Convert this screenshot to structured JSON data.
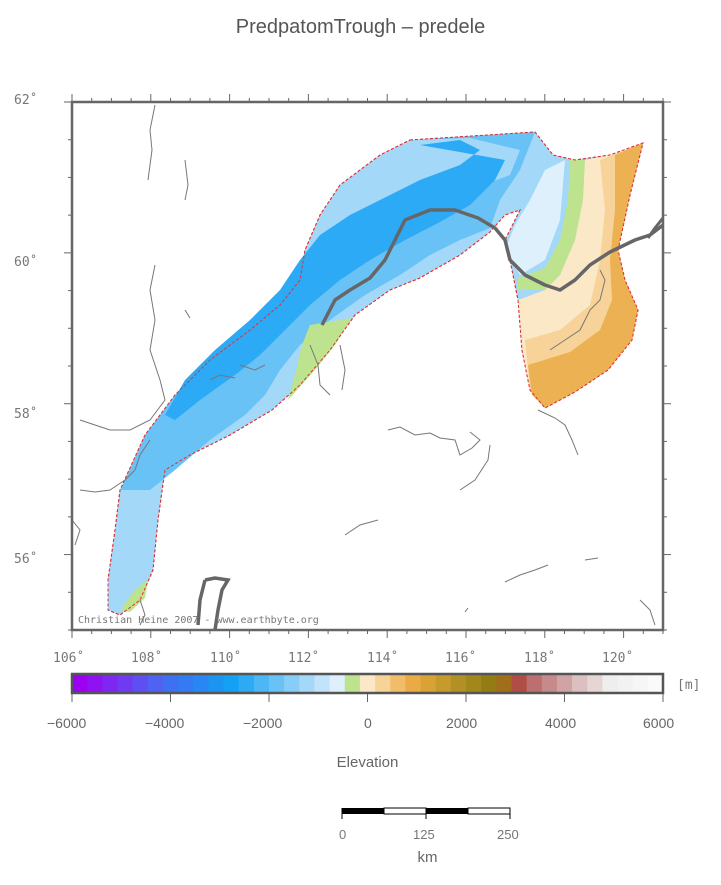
{
  "title": "PredpatomTrough – predele",
  "map": {
    "lat_labels": [
      "62˚",
      "60˚",
      "58˚",
      "56˚"
    ],
    "lon_labels": [
      "106˚",
      "108˚",
      "110˚",
      "112˚",
      "114˚",
      "116˚",
      "118˚",
      "120˚"
    ],
    "credit": "Christian Heine 2007 - www.earthbyte.org"
  },
  "colorbar": {
    "unit": "[m]",
    "tick_labels": [
      "−6000",
      "−4000",
      "−2000",
      "0",
      "2000",
      "4000",
      "6000"
    ],
    "label": "Elevation",
    "colors": [
      "#9b00f2",
      "#8e12f2",
      "#7e26f2",
      "#6e3af2",
      "#5f4ef2",
      "#4f62f2",
      "#4070f2",
      "#347af2",
      "#2887f2",
      "#1c94f2",
      "#12a1f5",
      "#2caaf5",
      "#4bb7f5",
      "#69c2f5",
      "#87cef7",
      "#a4d8f8",
      "#c2e4fa",
      "#ddf0fb",
      "#bde38f",
      "#fbe8c6",
      "#f7d39a",
      "#f2bd6a",
      "#eaaa45",
      "#d9a236",
      "#c79a2d",
      "#b39025",
      "#a2871d",
      "#917c16",
      "#a26e1c",
      "#b14d47",
      "#bb6f6f",
      "#c68a8a",
      "#d0a4a4",
      "#dcc0c0",
      "#e5d5d5",
      "#eeeeee",
      "#f2f2f2",
      "#f6f6f6",
      "#fafafa"
    ]
  },
  "scalebar": {
    "labels": [
      "0",
      "125",
      "250"
    ],
    "unit": "km"
  },
  "colors": {
    "frame": "#666666",
    "boundary": "#e03030",
    "river": "#666666",
    "coast": "#777777"
  }
}
